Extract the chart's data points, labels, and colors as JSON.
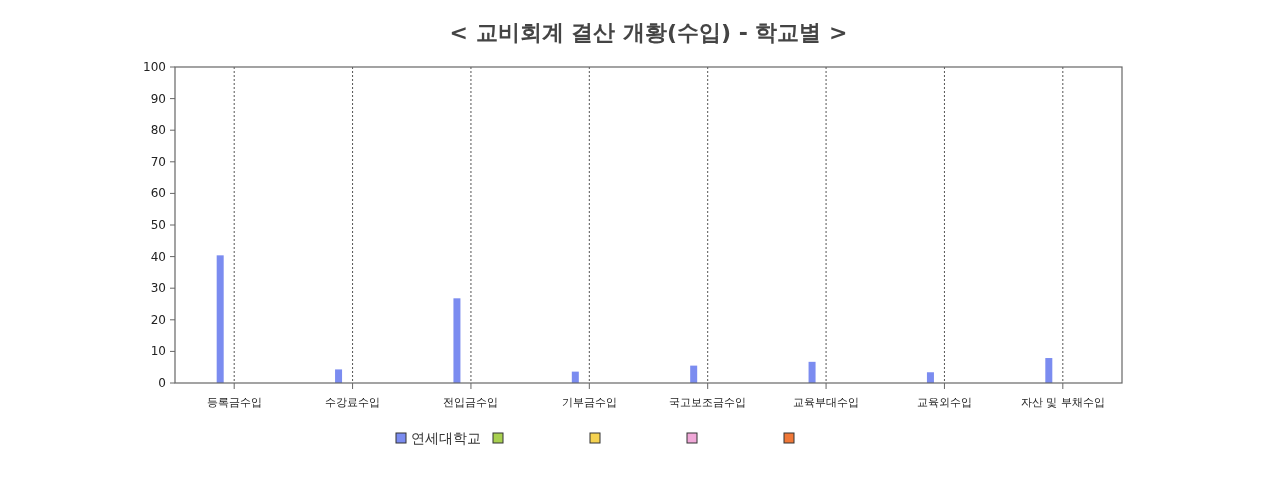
{
  "chart_data": {
    "type": "bar",
    "title": "< 교비회계 결산 개황(수입) - 학교별 >",
    "categories": [
      "등록금수입",
      "수강료수입",
      "전입금수입",
      "기부금수입",
      "국고보조금수입",
      "교육부대수입",
      "교육외수입",
      "자산 및 부채수입"
    ],
    "series": [
      {
        "name": "연세대학교",
        "color": "#7b8cf0",
        "values": [
          40.4,
          4.3,
          26.8,
          3.6,
          5.5,
          6.7,
          3.4,
          7.9
        ]
      },
      {
        "color": "#a8d050",
        "values": [
          null,
          null,
          null,
          null,
          null,
          null,
          null,
          null
        ]
      },
      {
        "color": "#f5d250",
        "values": [
          null,
          null,
          null,
          null,
          null,
          null,
          null,
          null
        ]
      },
      {
        "color": "#f0a8d8",
        "values": [
          null,
          null,
          null,
          null,
          null,
          null,
          null,
          null
        ]
      },
      {
        "color": "#f07838",
        "values": [
          null,
          null,
          null,
          null,
          null,
          null,
          null,
          null
        ]
      }
    ],
    "ylim": [
      0,
      100
    ],
    "yticks": [
      0,
      10,
      20,
      30,
      40,
      50,
      60,
      70,
      80,
      90,
      100
    ],
    "grid": "x",
    "legend": "bottom"
  }
}
